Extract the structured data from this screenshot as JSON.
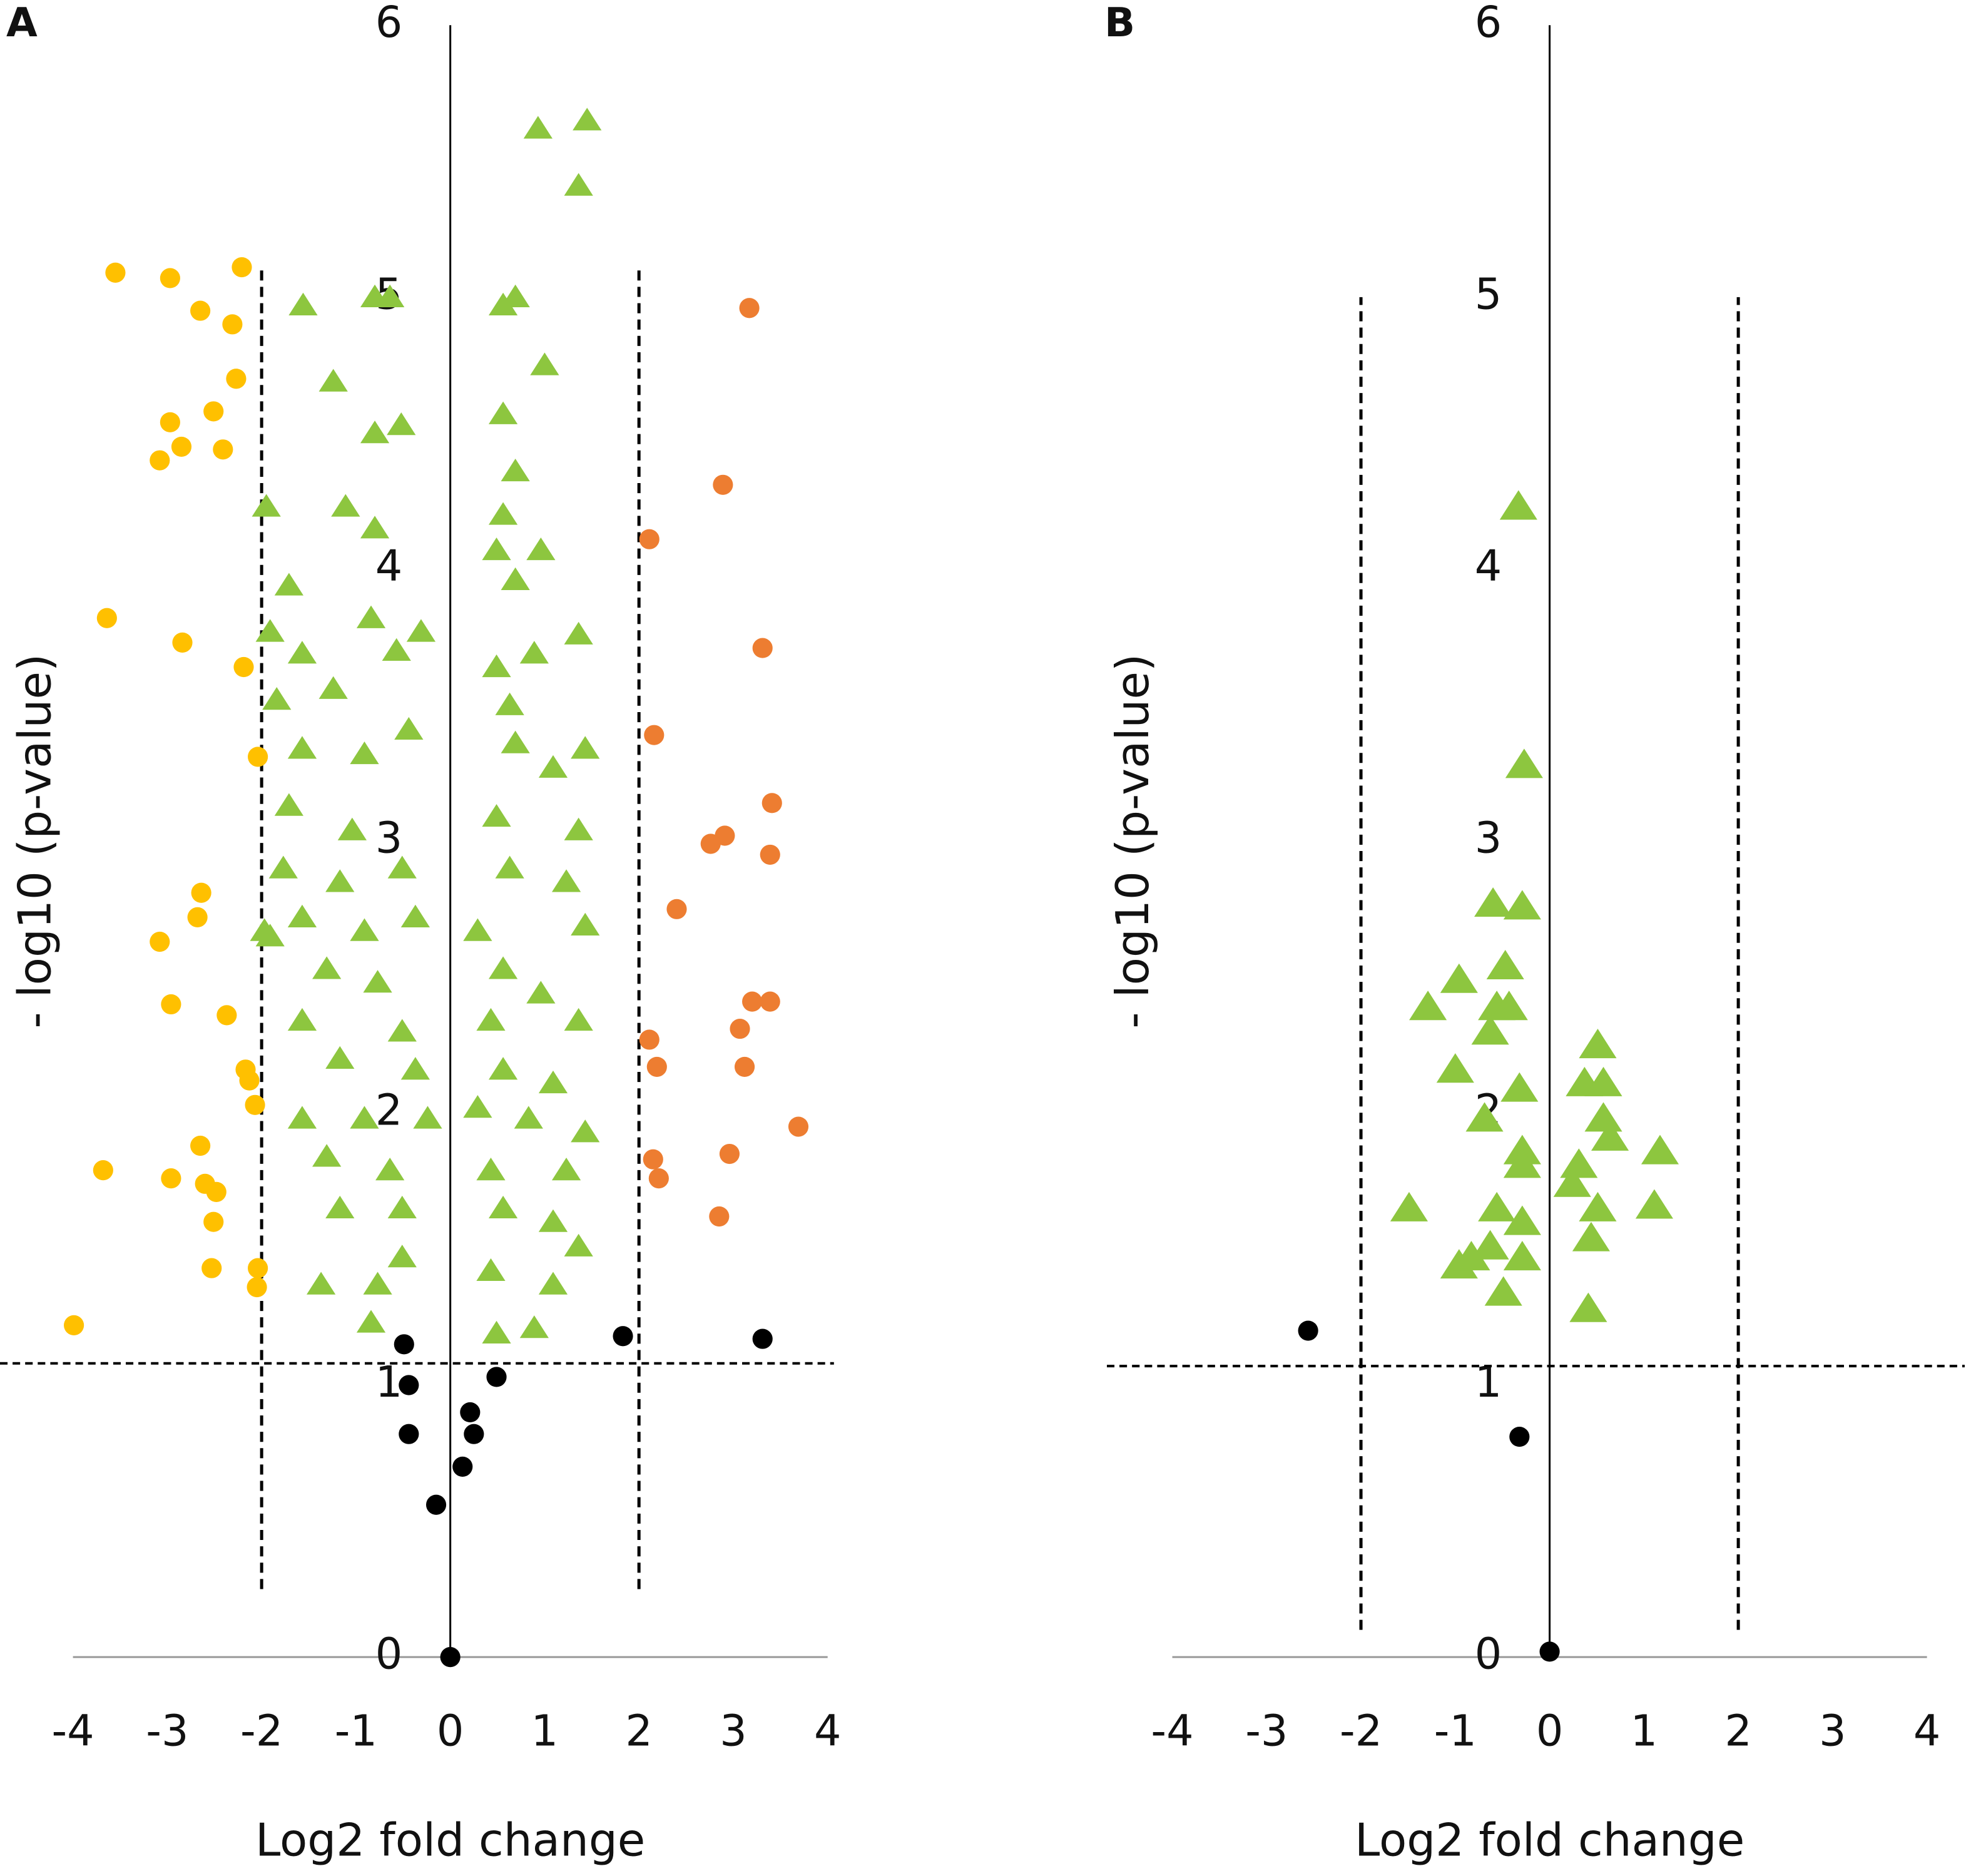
{
  "chart_data": [
    {
      "type": "scatter",
      "title": "A",
      "xlabel": "Log2 fold change",
      "ylabel": "- log10  (p-value)",
      "xlim": [
        -4,
        4
      ],
      "ylim": [
        0,
        6
      ],
      "xticks": [
        -4,
        -3,
        -2,
        -1,
        0,
        1,
        2,
        3,
        4
      ],
      "yticks": [
        0,
        1,
        2,
        3,
        4,
        5,
        6
      ],
      "vlines": [
        -2,
        2
      ],
      "vline_range": [
        0.25,
        5.1
      ],
      "hline": 1.08,
      "series": [
        {
          "color": "#ffc000",
          "marker": "circle",
          "x": [
            -3.55,
            -2.97,
            -2.21,
            -2.65,
            -2.31,
            -2.27,
            -2.97,
            -2.51,
            -2.85,
            -3.08,
            -2.41,
            -3.64,
            -2.84,
            -2.19,
            -2.04,
            -2.64,
            -2.68,
            -3.08,
            -2.96,
            -2.37,
            -2.17,
            -2.13,
            -2.07,
            -2.65,
            -3.68,
            -2.96,
            -2.6,
            -2.48,
            -2.51,
            -2.53,
            -2.04,
            -2.05,
            -3.99
          ],
          "values": [
            5.09,
            5.07,
            5.11,
            4.95,
            4.9,
            4.7,
            4.54,
            4.58,
            4.45,
            4.4,
            4.44,
            3.82,
            3.73,
            3.64,
            3.31,
            2.81,
            2.72,
            2.63,
            2.4,
            2.36,
            2.16,
            2.12,
            2.03,
            1.88,
            1.79,
            1.76,
            1.74,
            1.71,
            1.6,
            1.43,
            1.43,
            1.36,
            1.22
          ]
        },
        {
          "color": "#8dc63f",
          "marker": "triangle",
          "x": [
            0.93,
            1.45,
            1.36,
            -1.56,
            -0.8,
            -0.64,
            0.56,
            0.69,
            -1.24,
            1.0,
            -0.8,
            -0.52,
            0.56,
            0.69,
            -1.95,
            -1.11,
            0.56,
            -0.8,
            0.96,
            0.49,
            0.69,
            -1.71,
            1.36,
            -1.91,
            -0.31,
            -0.84,
            -1.57,
            -0.57,
            -1.24,
            0.49,
            0.89,
            -1.84,
            0.63,
            -1.57,
            -0.91,
            1.43,
            -0.44,
            0.69,
            1.09,
            -1.71,
            -1.04,
            1.36,
            0.49,
            -1.77,
            -1.17,
            -0.51,
            0.63,
            1.23,
            -1.57,
            -0.91,
            -0.37,
            0.29,
            1.43,
            -1.91,
            -1.31,
            -0.77,
            0.56,
            0.96,
            -1.57,
            -0.51,
            0.43,
            1.36,
            -1.17,
            -0.37,
            0.56,
            1.09,
            -1.57,
            -0.91,
            -0.24,
            0.29,
            0.83,
            1.43,
            -1.31,
            -0.64,
            0.43,
            1.23,
            -1.17,
            -0.51,
            0.56,
            1.09,
            -1.37,
            -0.77,
            -0.51,
            0.43,
            1.36,
            -0.84,
            0.49,
            0.89,
            1.09,
            -1.97
          ],
          "values": [
            5.62,
            5.65,
            5.41,
            4.97,
            5.0,
            5.0,
            4.97,
            5.0,
            4.69,
            4.75,
            4.5,
            4.53,
            4.57,
            4.36,
            4.23,
            4.23,
            4.2,
            4.15,
            4.07,
            4.07,
            3.96,
            3.94,
            3.76,
            3.77,
            3.77,
            3.82,
            3.69,
            3.7,
            3.56,
            3.64,
            3.69,
            3.52,
            3.5,
            3.34,
            3.32,
            3.34,
            3.41,
            3.36,
            3.27,
            3.13,
            3.04,
            3.04,
            3.09,
            2.9,
            2.85,
            2.9,
            2.9,
            2.85,
            2.72,
            2.67,
            2.72,
            2.67,
            2.69,
            2.65,
            2.53,
            2.48,
            2.53,
            2.44,
            2.34,
            2.3,
            2.34,
            2.34,
            2.2,
            2.16,
            2.16,
            2.11,
            1.98,
            1.98,
            1.98,
            2.02,
            1.98,
            1.93,
            1.84,
            1.79,
            1.79,
            1.79,
            1.65,
            1.65,
            1.65,
            1.6,
            1.37,
            1.37,
            1.47,
            1.42,
            1.51,
            1.23,
            1.19,
            1.21,
            1.37,
            2.67
          ]
        },
        {
          "color": "#ed7d31",
          "marker": "circle",
          "x": [
            3.17,
            2.89,
            2.11,
            3.31,
            2.16,
            3.41,
            2.91,
            2.76,
            3.39,
            2.4,
            3.2,
            3.39,
            3.07,
            2.11,
            2.19,
            3.12,
            3.69,
            2.15,
            2.96,
            2.21,
            2.85
          ],
          "values": [
            4.96,
            4.31,
            4.11,
            3.71,
            3.39,
            3.14,
            3.02,
            2.99,
            2.95,
            2.75,
            2.41,
            2.41,
            2.31,
            2.27,
            2.17,
            2.17,
            1.95,
            1.83,
            1.85,
            1.76,
            1.62
          ]
        },
        {
          "color": "#000000",
          "marker": "circle",
          "x": [
            -0.49,
            1.83,
            3.31,
            -0.44,
            0.49,
            0.21,
            -0.44,
            0.25,
            0.13,
            -0.15,
            0
          ],
          "values": [
            1.15,
            1.18,
            1.17,
            1.0,
            1.03,
            0.9,
            0.82,
            0.82,
            0.7,
            0.56,
            0
          ]
        }
      ]
    },
    {
      "type": "scatter",
      "title": "B",
      "xlabel": "Log2 fold change",
      "ylabel": "- log10  (p-value)",
      "xlim": [
        -4,
        4
      ],
      "ylim": [
        0,
        6
      ],
      "xticks": [
        -4,
        -3,
        -2,
        -1,
        0,
        1,
        2,
        3,
        4
      ],
      "yticks": [
        0,
        1,
        2,
        3,
        4,
        5,
        6
      ],
      "vlines": [
        -2,
        2
      ],
      "vline_range": [
        0.1,
        5.0
      ],
      "hline": 1.07,
      "series": [
        {
          "color": "#8dc63f",
          "marker": "triangle",
          "x": [
            -0.33,
            -0.27,
            -0.6,
            -0.29,
            -0.96,
            -1.29,
            -0.47,
            -0.56,
            -0.43,
            -0.63,
            -1.0,
            -0.32,
            0.51,
            0.37,
            0.57,
            -0.69,
            0.57,
            0.64,
            1.17,
            -0.29,
            0.31,
            -0.29,
            -1.49,
            1.11,
            -0.56,
            0.51,
            0.44,
            -0.29,
            -0.63,
            -0.96,
            -0.83,
            -0.29,
            -0.49,
            0.41,
            0.24
          ],
          "values": [
            4.23,
            3.28,
            2.77,
            2.76,
            2.49,
            2.39,
            2.54,
            2.39,
            2.39,
            2.3,
            2.16,
            2.09,
            2.25,
            2.11,
            2.11,
            1.98,
            1.98,
            1.91,
            1.86,
            1.86,
            1.81,
            1.81,
            1.65,
            1.66,
            1.65,
            1.65,
            1.54,
            1.6,
            1.51,
            1.44,
            1.47,
            1.47,
            1.34,
            1.28,
            1.74
          ]
        },
        {
          "color": "#000000",
          "marker": "circle",
          "x": [
            -2.56,
            -0.32,
            0
          ],
          "values": [
            1.2,
            0.81,
            0.02
          ]
        }
      ]
    }
  ]
}
